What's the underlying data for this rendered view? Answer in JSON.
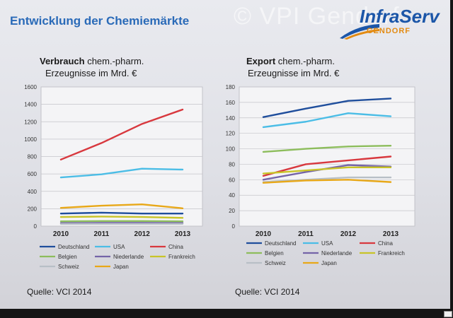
{
  "slide": {
    "title": "Entwicklung der Chemiemärkte",
    "watermark": "© VPI Gendorf",
    "logo_main": "InfraServ",
    "logo_sub": "GENDORF",
    "colors": {
      "title": "#2a6ab8",
      "logo": "#1c56a8",
      "logo_sub": "#e38b12"
    }
  },
  "chart_data": [
    {
      "type": "line",
      "title_bold": "Verbrauch",
      "title_rest": " chem.-pharm.",
      "subtitle": "Erzeugnisse im Mrd. €",
      "source": "Quelle: VCI 2014",
      "categories": [
        "2010",
        "2011",
        "2012",
        "2013"
      ],
      "ylim": [
        0,
        1600
      ],
      "yticks": [
        0,
        200,
        400,
        600,
        800,
        1000,
        1200,
        1400,
        1600
      ],
      "grid": true,
      "legend_position": "bottom",
      "series": [
        {
          "name": "Deutschland",
          "color": "#1f4e9c",
          "values": [
            145,
            155,
            145,
            145
          ]
        },
        {
          "name": "USA",
          "color": "#4bbde6",
          "values": [
            560,
            595,
            660,
            650
          ]
        },
        {
          "name": "China",
          "color": "#d8383e",
          "values": [
            765,
            955,
            1175,
            1340
          ]
        },
        {
          "name": "Belgien",
          "color": "#8dbd5c",
          "values": [
            55,
            58,
            58,
            55
          ]
        },
        {
          "name": "Niederlande",
          "color": "#7464a8",
          "values": [
            35,
            38,
            38,
            36
          ]
        },
        {
          "name": "Frankreich",
          "color": "#c8c428",
          "values": [
            105,
            110,
            105,
            95
          ]
        },
        {
          "name": "Schweiz",
          "color": "#b8bfc6",
          "values": [
            25,
            26,
            26,
            26
          ]
        },
        {
          "name": "Japan",
          "color": "#e8a818",
          "values": [
            210,
            235,
            250,
            205
          ]
        }
      ]
    },
    {
      "type": "line",
      "title_bold": "Export",
      "title_rest": " chem.-pharm.",
      "subtitle": "Erzeugnisse im Mrd. €",
      "source": "Quelle: VCI 2014",
      "categories": [
        "2010",
        "2011",
        "2012",
        "2013"
      ],
      "ylim": [
        0,
        180
      ],
      "yticks": [
        0,
        20,
        40,
        60,
        80,
        100,
        120,
        140,
        160,
        180
      ],
      "grid": true,
      "legend_position": "bottom",
      "series": [
        {
          "name": "Deutschland",
          "color": "#1f4e9c",
          "values": [
            141,
            152,
            162,
            165
          ]
        },
        {
          "name": "USA",
          "color": "#4bbde6",
          "values": [
            128,
            135,
            146,
            142
          ]
        },
        {
          "name": "China",
          "color": "#d8383e",
          "values": [
            65,
            80,
            85,
            90
          ]
        },
        {
          "name": "Belgien",
          "color": "#8dbd5c",
          "values": [
            96,
            100,
            103,
            104
          ]
        },
        {
          "name": "Niederlande",
          "color": "#7464a8",
          "values": [
            60,
            70,
            79,
            77
          ]
        },
        {
          "name": "Frankreich",
          "color": "#c8c428",
          "values": [
            68,
            72,
            76,
            76
          ]
        },
        {
          "name": "Schweiz",
          "color": "#b8bfc6",
          "values": [
            57,
            60,
            63,
            63
          ]
        },
        {
          "name": "Japan",
          "color": "#e8a818",
          "values": [
            56,
            59,
            60,
            57
          ]
        }
      ]
    }
  ]
}
